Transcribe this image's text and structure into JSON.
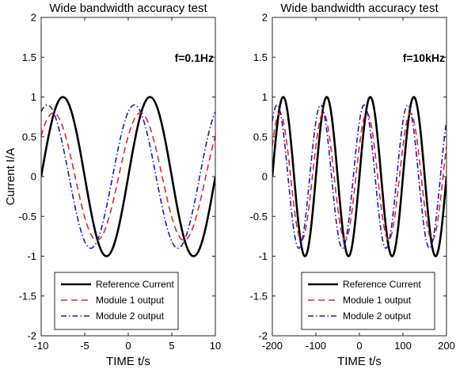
{
  "chart_data": [
    {
      "type": "line",
      "title": "Wide bandwidth accuracy test",
      "xlabel": "TIME t/s",
      "ylabel": "Current I/A",
      "annotation": "f=0.1Hz",
      "xlim": [
        -10,
        10
      ],
      "ylim": [
        -2,
        2
      ],
      "xticks": [
        -10,
        -5,
        0,
        5,
        10
      ],
      "yticks": [
        -2,
        -1.5,
        -1,
        -0.5,
        0,
        0.5,
        1,
        1.5,
        2
      ],
      "grid": false,
      "legend_position": "bottom",
      "series": [
        {
          "name": "Reference Current",
          "amplitude": 1.0,
          "period": 10,
          "zero_crossing": -10,
          "color": "#000000",
          "style": "solid"
        },
        {
          "name": "Module 1 output",
          "amplitude": 0.8,
          "period": 10,
          "zero_crossing": -11.1,
          "color": "#e8222b",
          "style": "dashed"
        },
        {
          "name": "Module 2 output",
          "amplitude": 0.9,
          "period": 10,
          "zero_crossing": -11.8,
          "color": "#1a1aba",
          "style": "dashdot"
        }
      ]
    },
    {
      "type": "line",
      "title": "Wide bandwidth accuracy test",
      "xlabel": "TIME t/s",
      "ylabel": "",
      "annotation": "f=10kHz",
      "xlim": [
        -200,
        200
      ],
      "ylim": [
        -2,
        2
      ],
      "xticks": [
        -200,
        -100,
        0,
        100,
        200
      ],
      "yticks": [
        -2,
        -1.5,
        -1,
        -0.5,
        0,
        0.5,
        1,
        1.5,
        2
      ],
      "grid": false,
      "legend_position": "bottom",
      "series": [
        {
          "name": "Reference Current",
          "amplitude": 1.0,
          "period": 100,
          "zero_crossing": -200,
          "color": "#000000",
          "style": "solid"
        },
        {
          "name": "Module 1 output",
          "amplitude": 0.8,
          "period": 100,
          "zero_crossing": -208,
          "color": "#e8222b",
          "style": "dashed"
        },
        {
          "name": "Module 2 output",
          "amplitude": 0.9,
          "period": 100,
          "zero_crossing": -214,
          "color": "#1a1aba",
          "style": "dashdot"
        }
      ]
    }
  ]
}
